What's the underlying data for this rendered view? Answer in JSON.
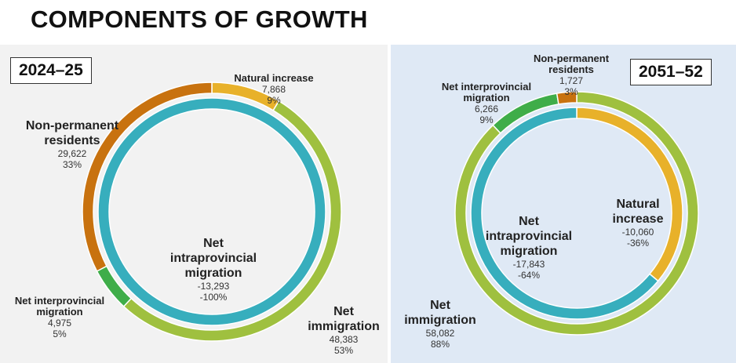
{
  "title": "COMPONENTS OF GROWTH",
  "colors": {
    "natural_increase": "#e8b12a",
    "net_immigration": "#9fc03f",
    "net_interprovincial_migration": "#3fad49",
    "non_permanent_residents": "#c8720f",
    "net_intraprovincial_migration": "#37aebd",
    "left_background": "#f2f2f2",
    "right_background": "#dfe9f5"
  },
  "chart_data": [
    {
      "type": "pie",
      "period": "2024–25",
      "outer_ring": [
        {
          "key": "natural_increase",
          "label": "Natural increase",
          "value": 7868,
          "value_text": "7,868",
          "percent_text": "9%"
        },
        {
          "key": "net_immigration",
          "label": "Net immigration",
          "value": 48383,
          "value_text": "48,383",
          "percent_text": "53%"
        },
        {
          "key": "net_interprovincial_migration",
          "label": "Net interprovincial migration",
          "value": 4975,
          "value_text": "4,975",
          "percent_text": "5%"
        },
        {
          "key": "non_permanent_residents",
          "label": "Non-permanent residents",
          "value": 29622,
          "value_text": "29,622",
          "percent_text": "33%"
        }
      ],
      "inner_ring": [
        {
          "key": "net_intraprovincial_migration",
          "label": "Net intraprovincial migration",
          "value": -13293,
          "value_text": "-13,293",
          "percent": -100,
          "percent_text": "-100%"
        }
      ]
    },
    {
      "type": "pie",
      "period": "2051–52",
      "outer_ring": [
        {
          "key": "net_immigration",
          "label": "Net immigration",
          "value": 58082,
          "value_text": "58,082",
          "percent_text": "88%"
        },
        {
          "key": "net_interprovincial_migration",
          "label": "Net interprovincial migration",
          "value": 6266,
          "value_text": "6,266",
          "percent_text": "9%"
        },
        {
          "key": "non_permanent_residents",
          "label": "Non-permanent residents",
          "value": 1727,
          "value_text": "1,727",
          "percent_text": "3%"
        }
      ],
      "inner_ring": [
        {
          "key": "natural_increase",
          "label": "Natural increase",
          "value": -10060,
          "value_text": "-10,060",
          "percent": -36,
          "percent_text": "-36%"
        },
        {
          "key": "net_intraprovincial_migration",
          "label": "Net intraprovincial migration",
          "value": -17843,
          "value_text": "-17,843",
          "percent": -64,
          "percent_text": "-64%"
        }
      ]
    }
  ]
}
